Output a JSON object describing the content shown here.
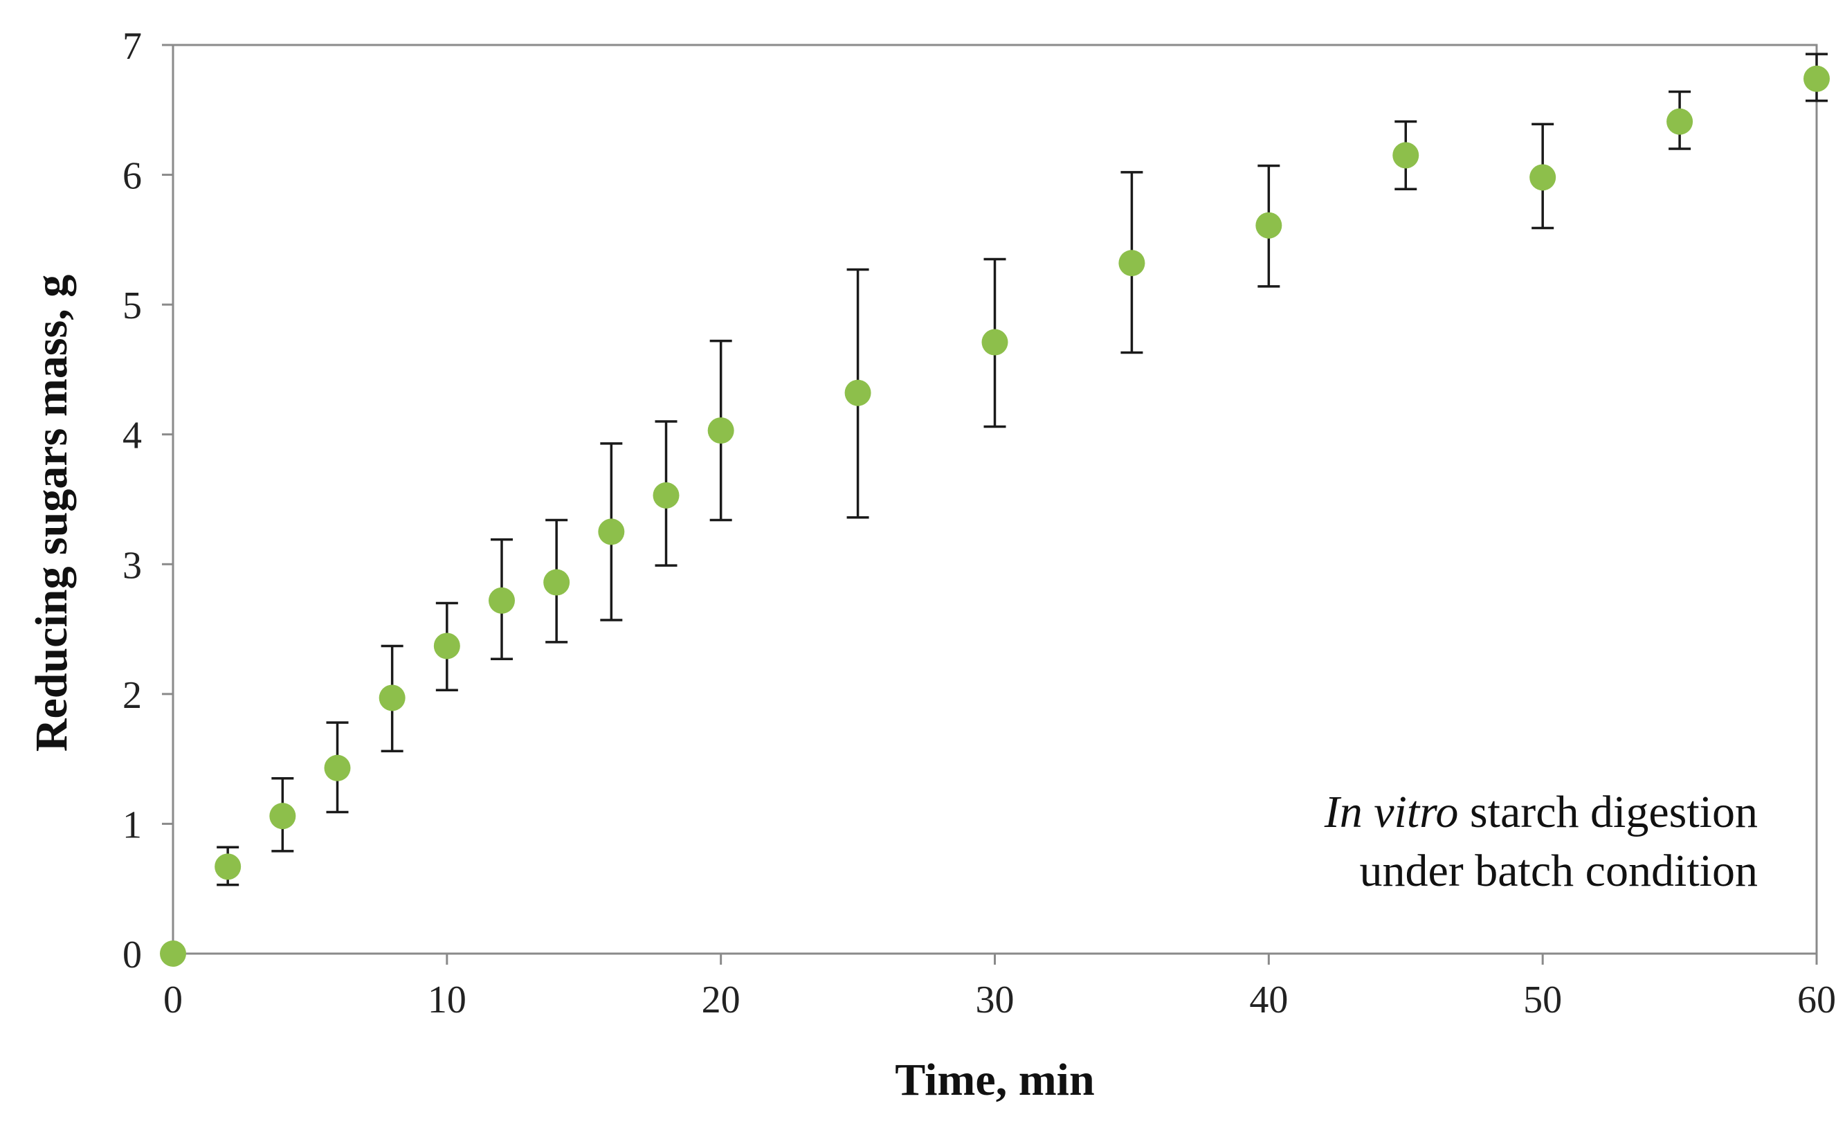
{
  "chart_data": {
    "type": "scatter",
    "title": "",
    "xlabel": "Time, min",
    "ylabel": "Reducing sugars mass, g",
    "xlim": [
      0,
      60
    ],
    "ylim": [
      0,
      7
    ],
    "xticks": [
      0,
      10,
      20,
      30,
      40,
      50,
      60
    ],
    "yticks": [
      0,
      1,
      2,
      3,
      4,
      5,
      6,
      7
    ],
    "grid": false,
    "marker_color": "#8DBF4B",
    "annotation": {
      "line1_italic": "In vitro",
      "line1_rest": " starch digestion",
      "line2": "under batch condition"
    },
    "series": [
      {
        "name": "Reducing sugars",
        "points": [
          {
            "x": 0,
            "y": 0.0,
            "err_low": 0.0,
            "err_high": 0.0
          },
          {
            "x": 2,
            "y": 0.67,
            "err_low": 0.53,
            "err_high": 0.82
          },
          {
            "x": 4,
            "y": 1.06,
            "err_low": 0.79,
            "err_high": 1.35
          },
          {
            "x": 6,
            "y": 1.43,
            "err_low": 1.09,
            "err_high": 1.78
          },
          {
            "x": 8,
            "y": 1.97,
            "err_low": 1.56,
            "err_high": 2.37
          },
          {
            "x": 10,
            "y": 2.37,
            "err_low": 2.03,
            "err_high": 2.7
          },
          {
            "x": 12,
            "y": 2.72,
            "err_low": 2.27,
            "err_high": 3.19
          },
          {
            "x": 14,
            "y": 2.86,
            "err_low": 2.4,
            "err_high": 3.34
          },
          {
            "x": 16,
            "y": 3.25,
            "err_low": 2.57,
            "err_high": 3.93
          },
          {
            "x": 18,
            "y": 3.53,
            "err_low": 2.99,
            "err_high": 4.1
          },
          {
            "x": 20,
            "y": 4.03,
            "err_low": 3.34,
            "err_high": 4.72
          },
          {
            "x": 25,
            "y": 4.32,
            "err_low": 3.36,
            "err_high": 5.27
          },
          {
            "x": 30,
            "y": 4.71,
            "err_low": 4.06,
            "err_high": 5.35
          },
          {
            "x": 35,
            "y": 5.32,
            "err_low": 4.63,
            "err_high": 6.02
          },
          {
            "x": 40,
            "y": 5.61,
            "err_low": 5.14,
            "err_high": 6.07
          },
          {
            "x": 45,
            "y": 6.15,
            "err_low": 5.89,
            "err_high": 6.41
          },
          {
            "x": 50,
            "y": 5.98,
            "err_low": 5.59,
            "err_high": 6.39
          },
          {
            "x": 55,
            "y": 6.41,
            "err_low": 6.2,
            "err_high": 6.64
          },
          {
            "x": 60,
            "y": 6.74,
            "err_low": 6.57,
            "err_high": 6.93
          }
        ]
      }
    ]
  }
}
